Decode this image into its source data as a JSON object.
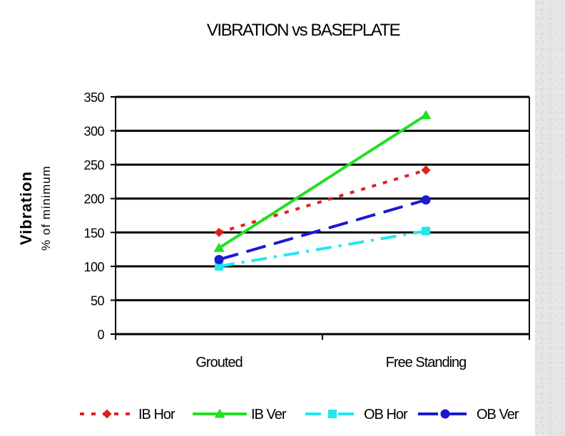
{
  "chart_data": {
    "type": "line",
    "title": "VIBRATION vs BASEPLATE",
    "ylabel": "Vibration",
    "ylabel_sub": "% of minimum",
    "xlabel": "",
    "categories": [
      "Grouted",
      "Free Standing"
    ],
    "ylim": [
      0,
      350
    ],
    "yticks": [
      0,
      50,
      100,
      150,
      200,
      250,
      300,
      350
    ],
    "grid": "horizontal",
    "legend_position": "bottom",
    "series": [
      {
        "name": "IB Hor",
        "values": [
          150,
          242
        ],
        "color": "#e0201b",
        "marker": "diamond",
        "dash": "dotted"
      },
      {
        "name": "IB Ver",
        "values": [
          127,
          323
        ],
        "color": "#22e022",
        "marker": "triangle",
        "dash": "solid"
      },
      {
        "name": "OB Hor",
        "values": [
          100,
          152
        ],
        "color": "#22e6f0",
        "marker": "square",
        "dash": "dash-dot"
      },
      {
        "name": "OB Ver",
        "values": [
          110,
          198
        ],
        "color": "#1a1ad0",
        "marker": "circle",
        "dash": "long-dash"
      }
    ]
  }
}
